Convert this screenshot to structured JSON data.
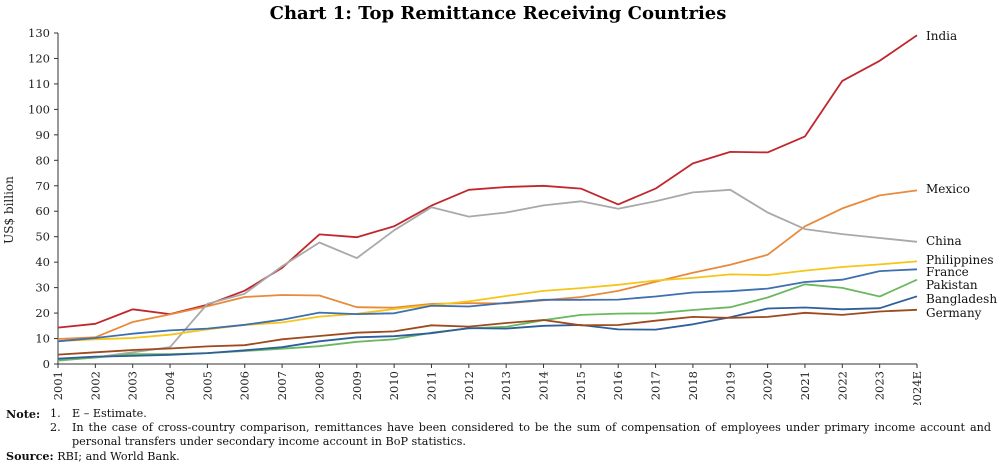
{
  "chart_data": {
    "type": "line",
    "title": "Chart 1: Top Remittance Receiving Countries",
    "ylabel": "US$ billion",
    "ylim": [
      0,
      130
    ],
    "yticks": [
      0,
      10,
      20,
      30,
      40,
      50,
      60,
      70,
      80,
      90,
      100,
      110,
      120,
      130
    ],
    "categories": [
      "2001",
      "2002",
      "2003",
      "2004",
      "2005",
      "2006",
      "2007",
      "2008",
      "2009",
      "2010",
      "2011",
      "2012",
      "2013",
      "2014",
      "2015",
      "2016",
      "2017",
      "2018",
      "2019",
      "2020",
      "2021",
      "2022",
      "2023",
      "2024E"
    ],
    "grid": false,
    "legend": "end-of-line labels",
    "series": [
      {
        "name": "India",
        "color": "#c0272d",
        "values": [
          14.3,
          15.8,
          21.5,
          19.6,
          23.3,
          28.8,
          37.8,
          50.9,
          49.8,
          54.1,
          62.2,
          68.4,
          69.5,
          70.0,
          68.9,
          62.7,
          68.9,
          78.8,
          83.3,
          83.1,
          89.4,
          111.2,
          119.1,
          129.1
        ]
      },
      {
        "name": "Mexico",
        "color": "#e88a3c",
        "values": [
          9.8,
          10.5,
          16.5,
          19.5,
          22.7,
          26.3,
          27.1,
          26.9,
          22.3,
          22.1,
          23.6,
          23.9,
          23.8,
          25.0,
          26.3,
          28.7,
          32.3,
          35.8,
          39.0,
          42.9,
          54.1,
          61.1,
          66.2,
          68.2
        ]
      },
      {
        "name": "China",
        "color": "#a9a9a9",
        "values": [
          1.3,
          2.6,
          4.6,
          6.6,
          23.6,
          27.6,
          38.4,
          47.7,
          41.6,
          52.5,
          61.6,
          57.9,
          59.5,
          62.3,
          63.9,
          61.0,
          63.9,
          67.4,
          68.4,
          59.5,
          53.0,
          51.0,
          49.5,
          48.0
        ]
      },
      {
        "name": "Philippines",
        "color": "#f5c518",
        "values": [
          9.0,
          9.7,
          10.2,
          11.5,
          13.6,
          15.3,
          16.3,
          18.6,
          19.7,
          21.6,
          23.1,
          24.6,
          26.7,
          28.7,
          29.8,
          31.1,
          32.8,
          33.8,
          35.2,
          34.9,
          36.7,
          38.1,
          39.1,
          40.3
        ]
      },
      {
        "name": "France",
        "color": "#3e6fb0",
        "values": [
          8.9,
          10.2,
          11.9,
          13.2,
          13.9,
          15.4,
          17.4,
          20.2,
          19.6,
          19.9,
          22.9,
          22.6,
          24.0,
          25.2,
          25.2,
          25.3,
          26.5,
          28.1,
          28.6,
          29.6,
          32.2,
          33.1,
          36.5,
          37.2
        ]
      },
      {
        "name": "Pakistan",
        "color": "#6ab85f",
        "values": [
          1.5,
          2.5,
          3.9,
          3.9,
          4.3,
          5.1,
          6.0,
          7.0,
          8.7,
          9.7,
          12.3,
          14.0,
          14.6,
          17.2,
          19.3,
          19.8,
          19.9,
          21.2,
          22.3,
          26.1,
          31.3,
          29.9,
          26.5,
          33.1
        ]
      },
      {
        "name": "Bangladesh",
        "color": "#2f5f9a",
        "values": [
          2.1,
          2.9,
          3.2,
          3.6,
          4.3,
          5.4,
          6.6,
          8.9,
          10.5,
          10.9,
          12.1,
          14.1,
          13.9,
          15.0,
          15.3,
          13.6,
          13.5,
          15.6,
          18.4,
          21.8,
          22.2,
          21.5,
          21.9,
          26.6
        ]
      },
      {
        "name": "Germany",
        "color": "#9e4a1e",
        "values": [
          3.7,
          4.6,
          5.5,
          6.1,
          6.9,
          7.4,
          9.7,
          11.0,
          12.3,
          12.8,
          15.2,
          14.7,
          16.1,
          17.3,
          15.2,
          15.3,
          17.0,
          18.5,
          18.1,
          18.5,
          20.1,
          19.3,
          20.6,
          21.3
        ]
      }
    ]
  },
  "notes": {
    "heading": "Note:",
    "items": [
      {
        "num": "1.",
        "text": "E – Estimate."
      },
      {
        "num": "2.",
        "text": "In the case of cross-country comparison, remittances have been considered to be the sum of compensation of employees under primary income account and personal transfers under secondary income account in BoP statistics."
      }
    ],
    "source_label": "Source:",
    "source_text": " RBI; and World Bank."
  }
}
